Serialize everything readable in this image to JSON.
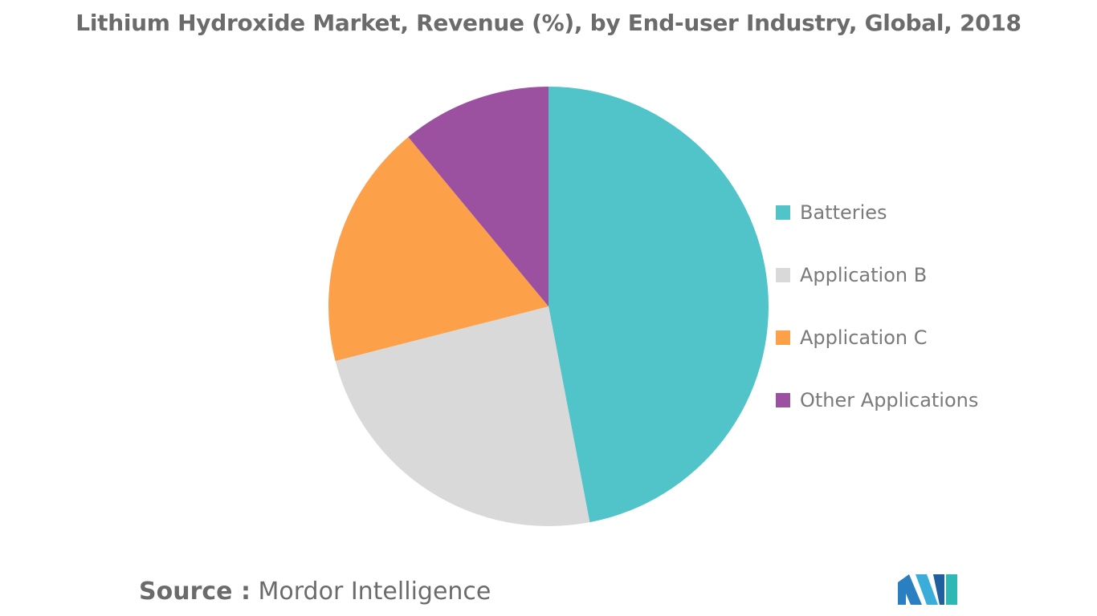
{
  "chart_data": {
    "type": "pie",
    "title": "Lithium Hydroxide Market, Revenue (%), by End-user Industry, Global, 2018",
    "categories": [
      "Batteries",
      "Application B",
      "Application C",
      "Other Applications"
    ],
    "values": [
      47,
      24,
      18,
      11
    ],
    "colors": [
      "#51c4c9",
      "#d9d9d9",
      "#fca049",
      "#9b51a0"
    ],
    "legend_position": "right"
  },
  "source": {
    "label": "Source :",
    "value": "Mordor Intelligence"
  },
  "logo": {
    "icon": "mordor-intelligence-logo"
  }
}
